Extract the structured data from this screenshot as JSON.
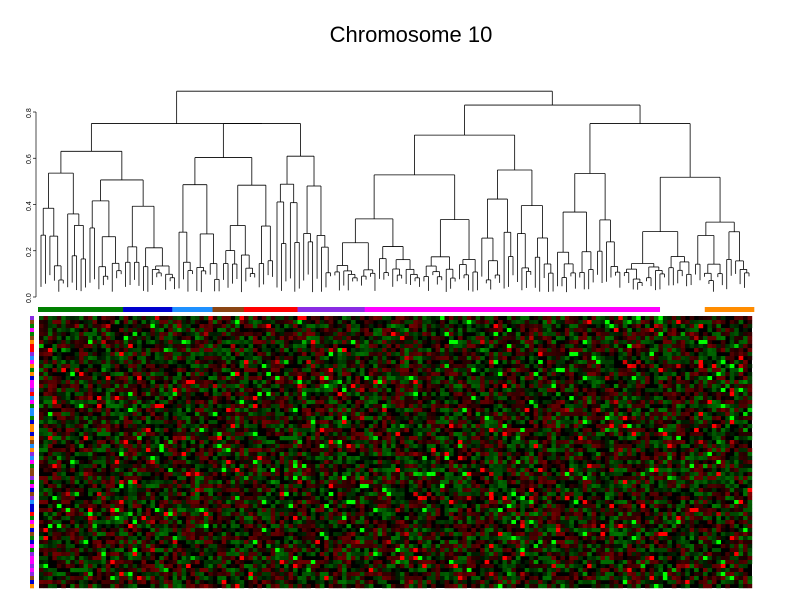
{
  "chart_data": {
    "type": "heatmap",
    "title": "Chromosome 10",
    "dendrogram": {
      "ylabel": "",
      "ylim": [
        0,
        0.8
      ],
      "ticks": [
        {
          "value": 0.0,
          "label": "0.0"
        },
        {
          "value": 0.2,
          "label": "0.2"
        },
        {
          "value": 0.4,
          "label": "0.4"
        },
        {
          "value": 0.6,
          "label": "0.6"
        },
        {
          "value": 0.8,
          "label": "0.8"
        }
      ],
      "n_leaves": 160,
      "major_merges": [
        {
          "height": 0.89,
          "description": "root"
        },
        {
          "height": 0.83,
          "description": "right main branch"
        },
        {
          "height": 0.75,
          "description": "left main branch"
        },
        {
          "height": 0.75,
          "description": "far-right branch"
        }
      ]
    },
    "column_group_colors": [
      {
        "name": "group-green",
        "color": "#008000",
        "count": 19
      },
      {
        "name": "group-blue",
        "color": "#0000CD",
        "count": 11
      },
      {
        "name": "group-skyblue",
        "color": "#1E90FF",
        "count": 9
      },
      {
        "name": "group-brown",
        "color": "#8B4513",
        "count": 7
      },
      {
        "name": "group-red",
        "color": "#FF0000",
        "count": 12
      },
      {
        "name": "group-purple",
        "color": "#8A2BE2",
        "count": 15
      },
      {
        "name": "group-magenta",
        "color": "#FF00FF",
        "count": 66
      },
      {
        "name": "gap",
        "color": "#FFFFFF",
        "count": 10
      },
      {
        "name": "group-orange",
        "color": "#FF8C00",
        "count": 11
      }
    ],
    "row_side_colors": [
      "#008000",
      "#FF0000",
      "#FF00FF",
      "#1E90FF",
      "#0000CD",
      "#8B4513",
      "#8A2BE2",
      "#FF8C00"
    ],
    "heatmap": {
      "rows": 68,
      "cols": 160,
      "color_scale": {
        "low": "#00FF00",
        "mid": "#000000",
        "high": "#FF0000"
      }
    }
  },
  "colors": {
    "low": "#00FF00",
    "mid": "#000000",
    "high": "#FF0000"
  }
}
